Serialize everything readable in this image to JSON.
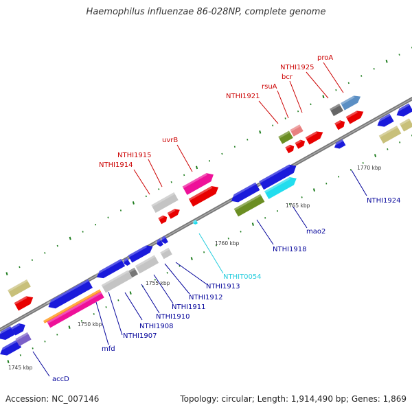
{
  "title": "Haemophilus influenzae 86-028NP, complete genome",
  "footer": {
    "accession": "Accession: NC_007146",
    "stats": "Topology: circular; Length: 1,914,490 bp; Genes: 1,869"
  },
  "colors": {
    "blue": "#1a1adb",
    "red": "#e80000",
    "gray": "#c4c4c4",
    "pink": "#ee1199",
    "olive": "#6b8e23",
    "khaki": "#c8c07a",
    "cyan": "#22ddee",
    "steel": "#5b8fc4",
    "purple": "#7b60c8",
    "orange": "#ff8c00",
    "backbone": "#777777",
    "tick": "#1e7d1e",
    "label_red": "#cc0000",
    "label_blue": "#000099",
    "label_cyan": "#22ccdd"
  },
  "kbp_labels": [
    "1745 kbp",
    "1750 kbp",
    "1755 kbp",
    "1760 kbp",
    "1765 kbp",
    "1770 kbp"
  ],
  "gene_labels_top": [
    "NTHI1914",
    "NTHI1915",
    "uvrB",
    "NTHI1921",
    "rsuA",
    "bcr",
    "NTHI1925",
    "proA"
  ],
  "gene_labels_bottom": [
    "accD",
    "mfd",
    "NTHI1907",
    "NTHI1908",
    "NTHI1910",
    "NTHI1911",
    "NTHI1912",
    "NTHI1913",
    "NTHIT0054",
    "NTHI1918",
    "mao2",
    "NTHI1924"
  ]
}
